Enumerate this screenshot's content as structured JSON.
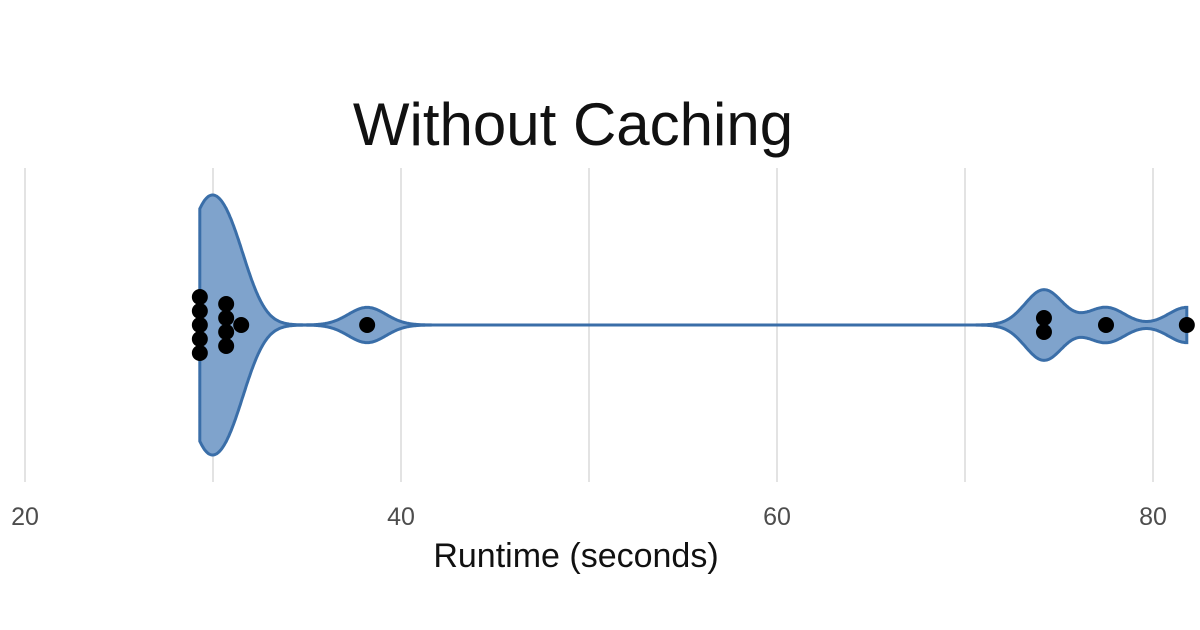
{
  "chart_data": {
    "type": "violin",
    "title": "Without Caching",
    "xlabel": "Runtime (seconds)",
    "ylabel": "",
    "xlim": [
      20,
      82
    ],
    "xticks": [
      20,
      40,
      60,
      80
    ],
    "tick_labels": [
      "20",
      "40",
      "60",
      "80"
    ],
    "minor_gridlines": [
      30,
      50,
      70
    ],
    "grid": true,
    "points": [
      29.3,
      29.3,
      29.3,
      29.3,
      29.3,
      30.7,
      30.7,
      30.7,
      30.7,
      31.5,
      38.2,
      74.2,
      74.2,
      77.5,
      81.8
    ],
    "colors": {
      "fill": "#7fa3cc",
      "stroke": "#3a6ea8",
      "points": "#000000",
      "grid": "#e3e3e3"
    }
  }
}
